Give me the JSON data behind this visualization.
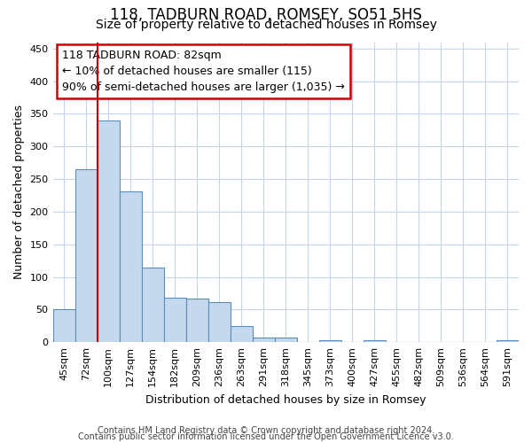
{
  "title": "118, TADBURN ROAD, ROMSEY, SO51 5HS",
  "subtitle": "Size of property relative to detached houses in Romsey",
  "xlabel": "Distribution of detached houses by size in Romsey",
  "ylabel": "Number of detached properties",
  "bin_labels": [
    "45sqm",
    "72sqm",
    "100sqm",
    "127sqm",
    "154sqm",
    "182sqm",
    "209sqm",
    "236sqm",
    "263sqm",
    "291sqm",
    "318sqm",
    "345sqm",
    "373sqm",
    "400sqm",
    "427sqm",
    "455sqm",
    "482sqm",
    "509sqm",
    "536sqm",
    "564sqm",
    "591sqm"
  ],
  "bar_heights": [
    50,
    265,
    340,
    231,
    115,
    68,
    67,
    62,
    25,
    7,
    7,
    0,
    3,
    0,
    3,
    0,
    0,
    0,
    0,
    0,
    3
  ],
  "bar_color": "#c5d8ee",
  "bar_edge_color": "#5b8db8",
  "vline_x": 1.5,
  "vline_color": "#cc0000",
  "annotation_line1": "118 TADBURN ROAD: 82sqm",
  "annotation_line2": "← 10% of detached houses are smaller (115)",
  "annotation_line3": "90% of semi-detached houses are larger (1,035) →",
  "annotation_box_color": "#cc0000",
  "ylim": [
    0,
    460
  ],
  "yticks": [
    0,
    50,
    100,
    150,
    200,
    250,
    300,
    350,
    400,
    450
  ],
  "footer_line1": "Contains HM Land Registry data © Crown copyright and database right 2024.",
  "footer_line2": "Contains public sector information licensed under the Open Government Licence v3.0.",
  "bg_color": "#ffffff",
  "grid_color": "#c8d4e8",
  "title_fontsize": 12,
  "subtitle_fontsize": 10,
  "axis_label_fontsize": 9,
  "tick_fontsize": 8,
  "footer_fontsize": 7
}
